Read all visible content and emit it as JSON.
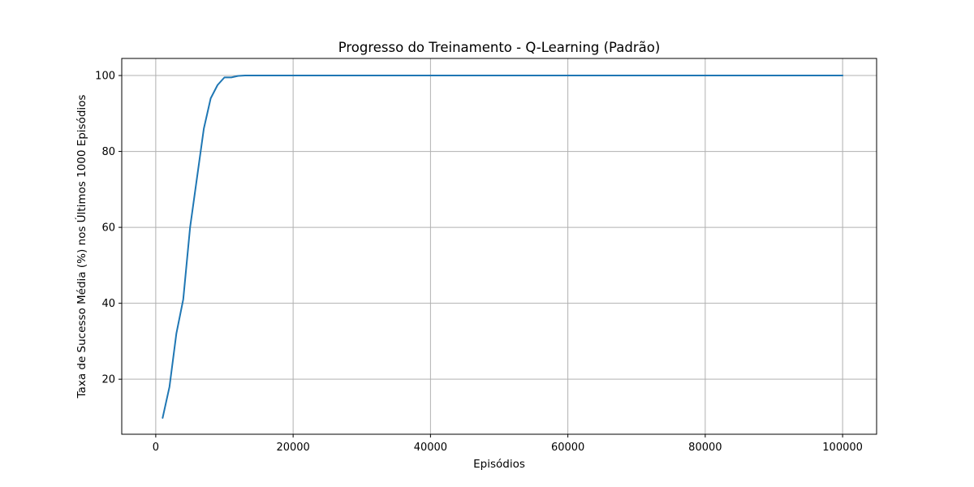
{
  "chart_data": {
    "type": "line",
    "title": "Progresso do Treinamento - Q-Learning (Padrão)",
    "xlabel": "Episódios",
    "ylabel": "Taxa de Sucesso Média (%) nos Últimos 1000 Episódios",
    "xlim": [
      -4950,
      104950
    ],
    "ylim": [
      5.5,
      104.5
    ],
    "xticks": [
      0,
      20000,
      40000,
      60000,
      80000,
      100000
    ],
    "yticks": [
      20,
      40,
      60,
      80,
      100
    ],
    "grid": true,
    "line_color": "#1f77b4",
    "grid_color": "#b0b0b0",
    "series": [
      {
        "x": [
          1000,
          2000,
          3000,
          4000,
          5000,
          6000,
          7000,
          8000,
          9000,
          10000,
          11000,
          12000,
          13000,
          14000,
          15000,
          20000,
          30000,
          40000,
          50000,
          60000,
          70000,
          80000,
          90000,
          100000
        ],
        "values": [
          9.8,
          18,
          32,
          41,
          60,
          73,
          86,
          94,
          97.5,
          99.5,
          99.5,
          99.9,
          100,
          100,
          100,
          100,
          100,
          100,
          100,
          100,
          100,
          100,
          100,
          100
        ]
      }
    ]
  }
}
